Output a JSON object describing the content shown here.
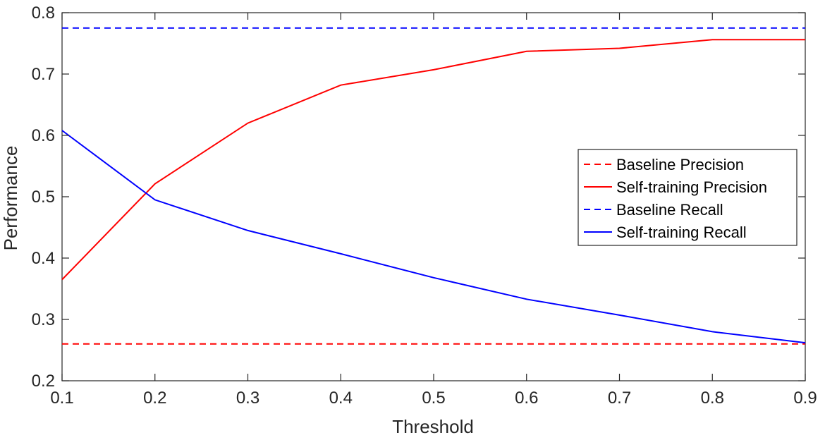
{
  "chart_data": {
    "type": "line",
    "xlabel": "Threshold",
    "ylabel": "Performance",
    "xlim": [
      0.1,
      0.9
    ],
    "ylim": [
      0.2,
      0.8
    ],
    "xticks": [
      "0.1",
      "0.2",
      "0.3",
      "0.4",
      "0.5",
      "0.6",
      "0.7",
      "0.8",
      "0.9"
    ],
    "yticks": [
      "0.2",
      "0.3",
      "0.4",
      "0.5",
      "0.6",
      "0.7",
      "0.8"
    ],
    "grid": false,
    "legend_position": "right",
    "x": [
      0.1,
      0.2,
      0.3,
      0.4,
      0.5,
      0.6,
      0.7,
      0.8,
      0.9
    ],
    "series": [
      {
        "name": "Baseline Precision",
        "color": "#ff0000",
        "style": "dashed",
        "values": [
          0.26,
          0.26,
          0.26,
          0.26,
          0.26,
          0.26,
          0.26,
          0.26,
          0.26
        ]
      },
      {
        "name": "Self-training Precision",
        "color": "#ff0000",
        "style": "solid",
        "values": [
          0.365,
          0.521,
          0.62,
          0.682,
          0.707,
          0.737,
          0.742,
          0.756,
          0.756
        ]
      },
      {
        "name": "Baseline Recall",
        "color": "#0000ff",
        "style": "dashed",
        "values": [
          0.775,
          0.775,
          0.775,
          0.775,
          0.775,
          0.775,
          0.775,
          0.775,
          0.775
        ]
      },
      {
        "name": "Self-training Recall",
        "color": "#0000ff",
        "style": "solid",
        "values": [
          0.608,
          0.495,
          0.445,
          0.407,
          0.368,
          0.333,
          0.307,
          0.28,
          0.262
        ]
      }
    ]
  }
}
